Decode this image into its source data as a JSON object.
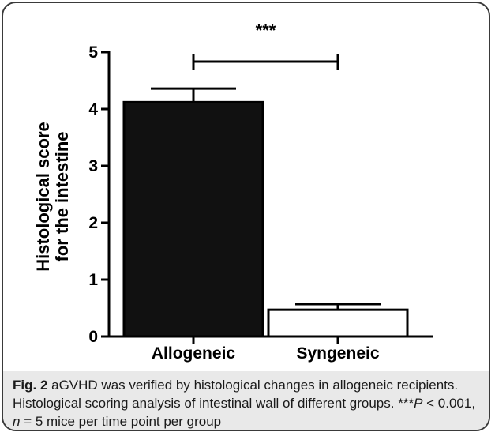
{
  "chart_data": {
    "type": "bar",
    "categories": [
      "Allogeneic",
      "Syngeneic"
    ],
    "values": [
      4.12,
      0.47
    ],
    "errors": [
      0.24,
      0.1
    ],
    "bar_colors": [
      "#111111",
      "#ffffff"
    ],
    "ylabel_line1": "Histological score",
    "ylabel_line2": "for the intestine",
    "yticks": [
      "0",
      "1",
      "2",
      "3",
      "4",
      "5"
    ],
    "ylim": [
      0,
      5
    ],
    "significance": "***",
    "grid": false
  },
  "caption": {
    "fig": "Fig. 2",
    "text1": " aGVHD was verified by histological changes in allogeneic recipients. Histological scoring analysis of intestinal wall of different groups. ***",
    "p": "P",
    "text2": " < 0.001, ",
    "n": "n",
    "text3": " = 5 mice per time point per group"
  }
}
